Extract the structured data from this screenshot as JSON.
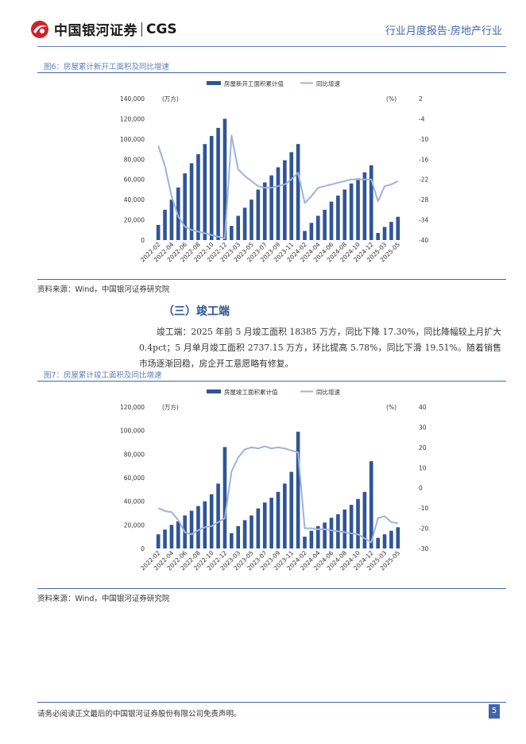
{
  "header": {
    "logo_cn": "中国银河证券",
    "logo_en": "CGS",
    "right_text": "行业月度报告·房地产行业",
    "logo_color": "#d0202e"
  },
  "figure6": {
    "title": "图6：房屋累计新开工面积及同比增速",
    "source": "资料来源：Wind，中国银河证券研究院"
  },
  "section": {
    "title": "（三）竣工端",
    "paragraph": "竣工端：2025 年前 5 月竣工面积 18385 万方，同比下降 17.30%，同比降幅较上月扩大 0.4pct；5 月单月竣工面积 2737.15 万方，环比提高 5.78%，同比下滑 19.51%。随着销售市场逐渐回稳，房企开工意愿略有修复。"
  },
  "figure7": {
    "title": "图7：房屋累计竣工面积及同比增速",
    "source": "资料来源：Wind，中国银河证券研究院"
  },
  "footer": {
    "disclaimer": "请务必阅读正文最后的中国银河证券股份有限公司免责声明。",
    "page_number": "5"
  },
  "chart_data": [
    {
      "type": "bar+line",
      "legend": [
        "房屋新开工面积累计值",
        "同比增速"
      ],
      "left_unit": "(万方)",
      "right_unit": "(%)",
      "left_ylim": [
        0,
        140000
      ],
      "left_ticks": [
        "140,000",
        "120,000",
        "100,000",
        "80,000",
        "60,000",
        "40,000",
        "20,000",
        "0"
      ],
      "right_ylim": [
        -40,
        2
      ],
      "right_ticks": [
        "2",
        "-4",
        "-10",
        "-16",
        "-22",
        "-28",
        "-34",
        "-40"
      ],
      "x_labels": [
        "2022-02",
        "2022-04",
        "2022-06",
        "2022-08",
        "2022-10",
        "2022-12",
        "2023-03",
        "2023-05",
        "2023-07",
        "2023-09",
        "2023-11",
        "2024-02",
        "2024-04",
        "2024-06",
        "2024-08",
        "2024-10",
        "2024-12",
        "2025-03",
        "2025-05"
      ],
      "bar_values": [
        15000,
        30000,
        40000,
        52000,
        66000,
        76000,
        85000,
        95000,
        103000,
        111000,
        120000,
        14000,
        24000,
        32000,
        40000,
        50000,
        57000,
        64000,
        72000,
        79000,
        87000,
        95000,
        9000,
        17000,
        24000,
        30000,
        38000,
        44000,
        50000,
        56000,
        61000,
        67000,
        74000,
        7000,
        13000,
        18000,
        23000
      ],
      "line_values": [
        -12,
        -18,
        -27,
        -33,
        -36,
        -37,
        -37.5,
        -38,
        -38.5,
        -39,
        -39.5,
        -9,
        -19,
        -21,
        -22.5,
        -24,
        -24.5,
        -24.5,
        -24,
        -23.5,
        -22,
        -20,
        -29,
        -27,
        -24.5,
        -24,
        -23.5,
        -23,
        -22.5,
        -22,
        -22,
        -22,
        -22,
        -28.5,
        -24,
        -23.5,
        -22.5
      ],
      "bar_color": "#2f5597",
      "line_color": "#9db3dc"
    },
    {
      "type": "bar+line",
      "legend": [
        "房屋竣工面积累计值",
        "同比增速"
      ],
      "left_unit": "(万方)",
      "right_unit": "(%)",
      "left_ylim": [
        0,
        120000
      ],
      "left_ticks": [
        "120,000",
        "100,000",
        "80,000",
        "60,000",
        "40,000",
        "20,000",
        "0"
      ],
      "right_ylim": [
        -30,
        40
      ],
      "right_ticks": [
        "40",
        "30",
        "20",
        "10",
        "0",
        "-10",
        "-20",
        "-30"
      ],
      "x_labels": [
        "2022-02",
        "2022-04",
        "2022-06",
        "2022-08",
        "2022-10",
        "2022-12",
        "2023-03",
        "2023-05",
        "2023-07",
        "2023-09",
        "2023-11",
        "2024-02",
        "2024-04",
        "2024-06",
        "2024-08",
        "2024-10",
        "2024-12",
        "2025-03",
        "2025-05"
      ],
      "bar_values": [
        12000,
        16000,
        20000,
        23000,
        28000,
        32000,
        36000,
        40000,
        46000,
        55000,
        86000,
        13000,
        19000,
        24000,
        28000,
        34000,
        39000,
        43000,
        48000,
        55000,
        65000,
        99000,
        10000,
        15000,
        19000,
        22000,
        26000,
        29000,
        33000,
        37000,
        42000,
        48000,
        74000,
        9000,
        12000,
        15000,
        18000
      ],
      "line_values": [
        -10,
        -11.5,
        -12,
        -16,
        -22,
        -23,
        -21,
        -19.5,
        -19,
        -17,
        -15,
        8,
        15,
        19,
        20,
        19.5,
        20.5,
        19.5,
        20,
        19.5,
        18.5,
        17.5,
        -20,
        -20,
        -20.5,
        -20.5,
        -21,
        -21.5,
        -22,
        -22.5,
        -23,
        -25,
        -27,
        -15,
        -14,
        -17,
        -17.5
      ],
      "bar_color": "#2f5597",
      "line_color": "#9db3dc"
    }
  ]
}
